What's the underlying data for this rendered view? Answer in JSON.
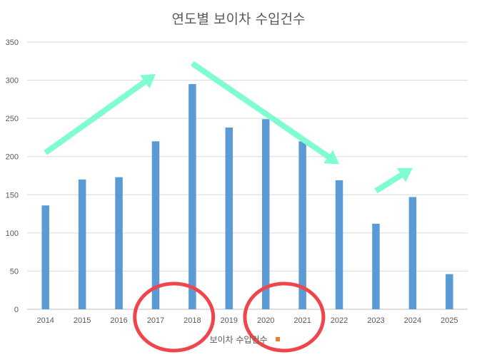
{
  "chart_data": {
    "type": "bar",
    "title": "연도별 보이차 수입건수",
    "categories": [
      "2014",
      "2015",
      "2016",
      "2017",
      "2018",
      "2019",
      "2020",
      "2021",
      "2022",
      "2023",
      "2024",
      "2025"
    ],
    "series": [
      {
        "name": "보이차 수입건수",
        "values": [
          136,
          170,
          173,
          220,
          295,
          238,
          249,
          220,
          169,
          112,
          147,
          46
        ],
        "color": "#5b9bd5"
      }
    ],
    "ylim": [
      0,
      350
    ],
    "yticks": [
      0,
      50,
      100,
      150,
      200,
      250,
      300,
      350
    ],
    "grid": true,
    "legend": "bottom",
    "legend_marker_color": "#ed7d31",
    "annotations": {
      "arrow_color": "#7ffcd0",
      "arrows": [
        {
          "from": {
            "x": "2014",
            "y": 205
          },
          "to": {
            "x": "2017",
            "y": 308
          }
        },
        {
          "from": {
            "x": "2018",
            "y": 322
          },
          "to": {
            "x": "2022",
            "y": 190
          }
        },
        {
          "from": {
            "x": "2023",
            "y": 155
          },
          "to": {
            "x": "2024",
            "y": 185
          }
        }
      ],
      "circle_color": "#f0464b",
      "circles": [
        {
          "around": [
            "2017",
            "2018"
          ]
        },
        {
          "around": [
            "2020",
            "2021"
          ]
        }
      ]
    }
  }
}
